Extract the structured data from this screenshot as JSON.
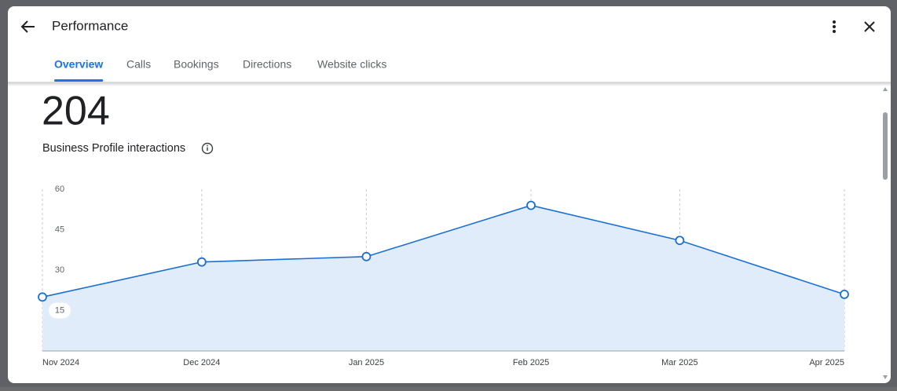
{
  "header": {
    "title": "Performance"
  },
  "tabs": [
    "Overview",
    "Calls",
    "Bookings",
    "Directions",
    "Website clicks"
  ],
  "active_tab": 0,
  "summary": {
    "total": "204",
    "label": "Business Profile interactions"
  },
  "chart_data": {
    "type": "area",
    "categories": [
      "Nov 2024",
      "Dec 2024",
      "Jan 2025",
      "Feb 2025",
      "Mar 2025",
      "Apr 2025"
    ],
    "values": [
      20,
      33,
      35,
      54,
      41,
      21
    ],
    "color": "#1a6fd4",
    "fill": "#e1ecfb",
    "ylim": [
      0,
      60
    ],
    "yticks": [
      15,
      30,
      45,
      60
    ],
    "grid": true
  }
}
